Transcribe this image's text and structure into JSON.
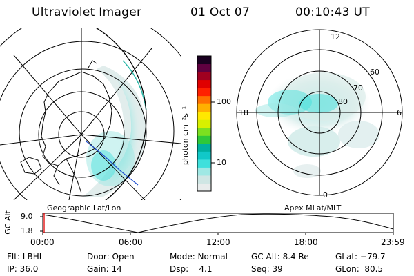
{
  "header": {
    "instrument": "Ultraviolet Imager",
    "date": "01 Oct 07",
    "time": "00:10:43 UT"
  },
  "left_panel": {
    "label": "Geographic Lat/Lon"
  },
  "right_panel": {
    "label": "Apex MLat/MLT",
    "mlt_labels": [
      "12",
      "18",
      "6",
      "0"
    ],
    "lat_labels": [
      "60",
      "70",
      "80"
    ]
  },
  "colorbar": {
    "unit": "photon cm⁻²s⁻¹",
    "ticks": [
      "100",
      "10"
    ],
    "scale": "log",
    "colors": [
      "#e8ecec",
      "#cfe6e4",
      "#9fe8e4",
      "#3fe0dc",
      "#11c8c8",
      "#00b0a0",
      "#2ec83a",
      "#7ce020",
      "#d8f000",
      "#ffe800",
      "#ffb000",
      "#ff7000",
      "#ff2000",
      "#e00000",
      "#a00020",
      "#600040",
      "#1a0020"
    ]
  },
  "altitude_plot": {
    "ylabel": "GC Alt",
    "yticks": [
      "9.0",
      "1.8"
    ],
    "xticks": [
      "00:00",
      "06:00",
      "12:00",
      "18:00",
      "23:59"
    ]
  },
  "footer": {
    "row1": {
      "flt": "Flt: LBHL",
      "door": "Door: Open",
      "mode": "Mode: Normal",
      "gcalt": "GC Alt: 8.4 Re",
      "glat": "GLat: −79.7"
    },
    "row2": {
      "ip": "IP: 36.0",
      "gain": "Gain: 14",
      "dsp": "Dsp:    4.1",
      "seq": "Seq: 39",
      "glon": "GLon:  80.5"
    }
  }
}
